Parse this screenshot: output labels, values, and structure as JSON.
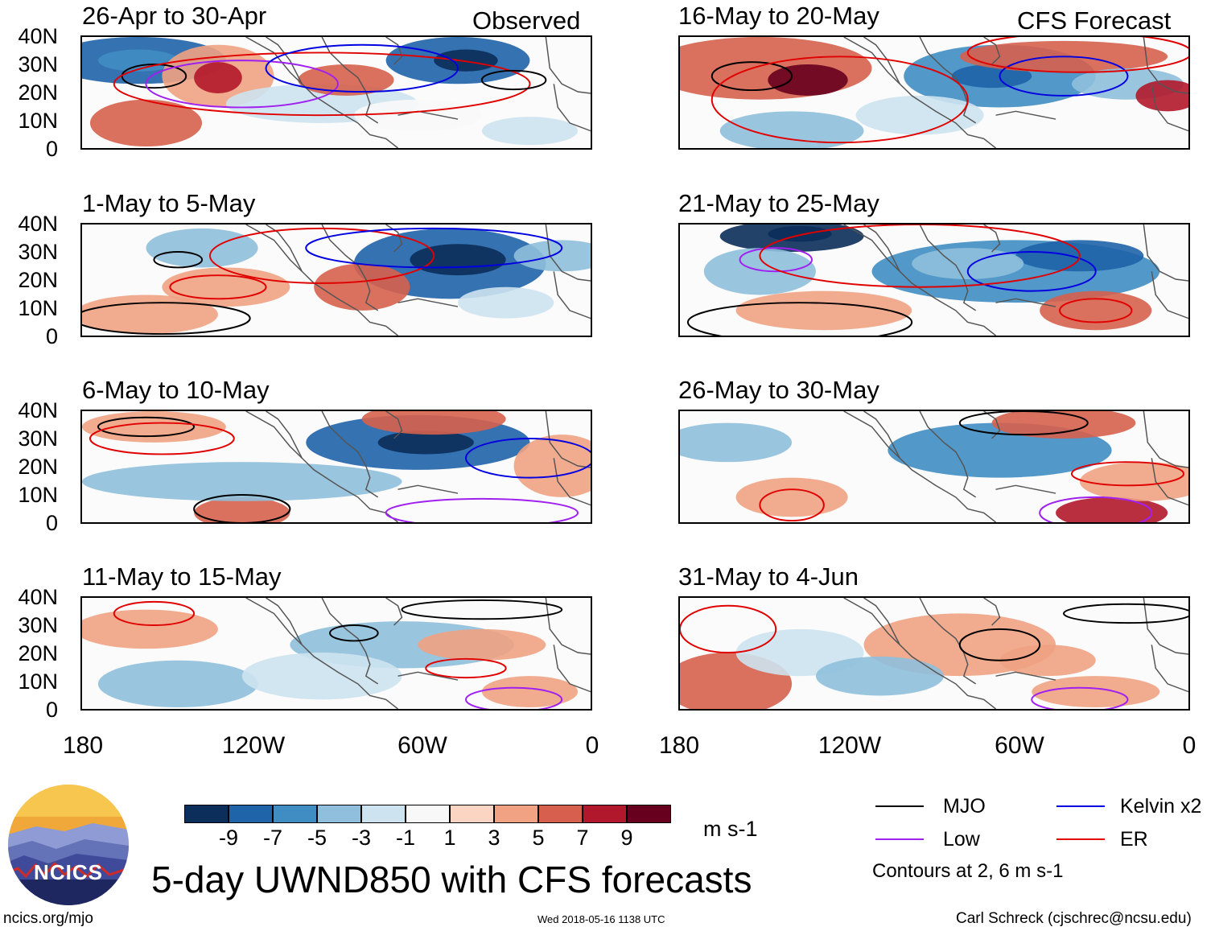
{
  "title": "5-day UWND850 with CFS forecasts",
  "site": "ncics.org/mjo",
  "timestamp": "Wed 2018-05-16 1138 UTC",
  "author": "Carl Schreck (cjschrec@ncsu.edu)",
  "logo_text": "NCICS",
  "observed_label": "Observed",
  "forecast_label": "CFS Forecast",
  "y_ticks": [
    "40N",
    "30N",
    "20N",
    "10N",
    "0"
  ],
  "x_ticks": [
    "180",
    "120W",
    "60W",
    "0"
  ],
  "panels": {
    "obs": [
      "26-Apr to 30-Apr",
      "1-May to 5-May",
      "6-May to 10-May",
      "11-May to 15-May"
    ],
    "fcst": [
      "16-May to 20-May",
      "21-May to 25-May",
      "26-May to 30-May",
      "31-May to 4-Jun"
    ]
  },
  "colorbar": {
    "labels": [
      "-9",
      "-7",
      "-5",
      "-3",
      "-1",
      "1",
      "3",
      "5",
      "7",
      "9"
    ],
    "colors": [
      "#0b2e5a",
      "#1f63a8",
      "#3f8dc3",
      "#8fbfdc",
      "#cde3f0",
      "#f8f8f8",
      "#fbd5c1",
      "#f0a283",
      "#d6604d",
      "#b2182b",
      "#67001f"
    ],
    "units": "m s-1"
  },
  "legend": {
    "items": [
      {
        "label": "MJO",
        "color": "#000000"
      },
      {
        "label": "Kelvin x2",
        "color": "#0000e0"
      },
      {
        "label": "Low",
        "color": "#a020f0"
      },
      {
        "label": "ER",
        "color": "#e00000"
      }
    ],
    "note": "Contours at 2, 6 m s-1"
  }
}
